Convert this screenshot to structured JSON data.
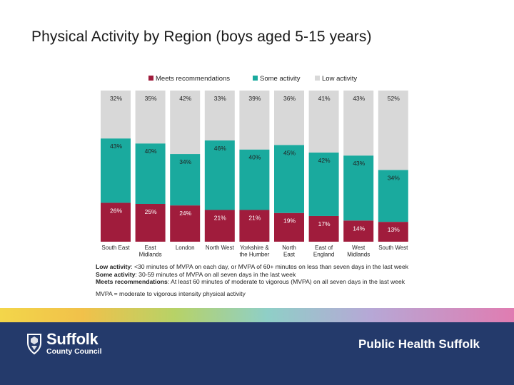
{
  "title": "Physical Activity by Region (boys aged 5-15 years)",
  "chart_data": {
    "type": "bar",
    "stacked": true,
    "normalized_percent": true,
    "categories": [
      [
        "South East"
      ],
      [
        "East",
        "Midlands"
      ],
      [
        "London"
      ],
      [
        "North West"
      ],
      [
        "Yorkshire &",
        "the Humber"
      ],
      [
        "North",
        "East"
      ],
      [
        "East of",
        "England"
      ],
      [
        "West",
        "Midlands"
      ],
      [
        "South West"
      ]
    ],
    "series": [
      {
        "name": "Meets recommendations",
        "color": "#a01c3c",
        "values": [
          26,
          25,
          24,
          21,
          21,
          19,
          17,
          14,
          13
        ],
        "labels": [
          "26%",
          "25%",
          "24%",
          "21%",
          "21%",
          "19%",
          "17%",
          "14%",
          "13%"
        ]
      },
      {
        "name": "Some activity",
        "color": "#1aaa9e",
        "values": [
          43,
          40,
          34,
          46,
          40,
          45,
          42,
          43,
          34
        ],
        "labels": [
          "43%",
          "40%",
          "34%",
          "46%",
          "40%",
          "45%",
          "42%",
          "43%",
          "34%"
        ]
      },
      {
        "name": "Low activity",
        "color": "#d8d8d8",
        "values": [
          32,
          35,
          42,
          33,
          39,
          36,
          41,
          43,
          52
        ],
        "labels": [
          "32%",
          "35%",
          "42%",
          "33%",
          "39%",
          "36%",
          "41%",
          "43%",
          "52%"
        ]
      }
    ],
    "legend": "top",
    "ylim": [
      0,
      100
    ]
  },
  "notes": {
    "low_label": "Low activity",
    "low_text": ": <30 minutes of MVPA on each day, or MVPA of 60+ minutes on less than seven days in the last week",
    "some_label": "Some activity",
    "some_text": ": 30-59 minutes of MVPA on all seven days in the last week",
    "meets_label": "Meets recommendations",
    "meets_text": ": At least 60 minutes of moderate to vigorous (MVPA) on all seven days in the last week",
    "mvpa": "MVPA = moderate to vigorous intensity physical activity"
  },
  "footer": {
    "org_name": "Suffolk",
    "org_sub": "County Council",
    "right_text": "Public Health Suffolk"
  }
}
